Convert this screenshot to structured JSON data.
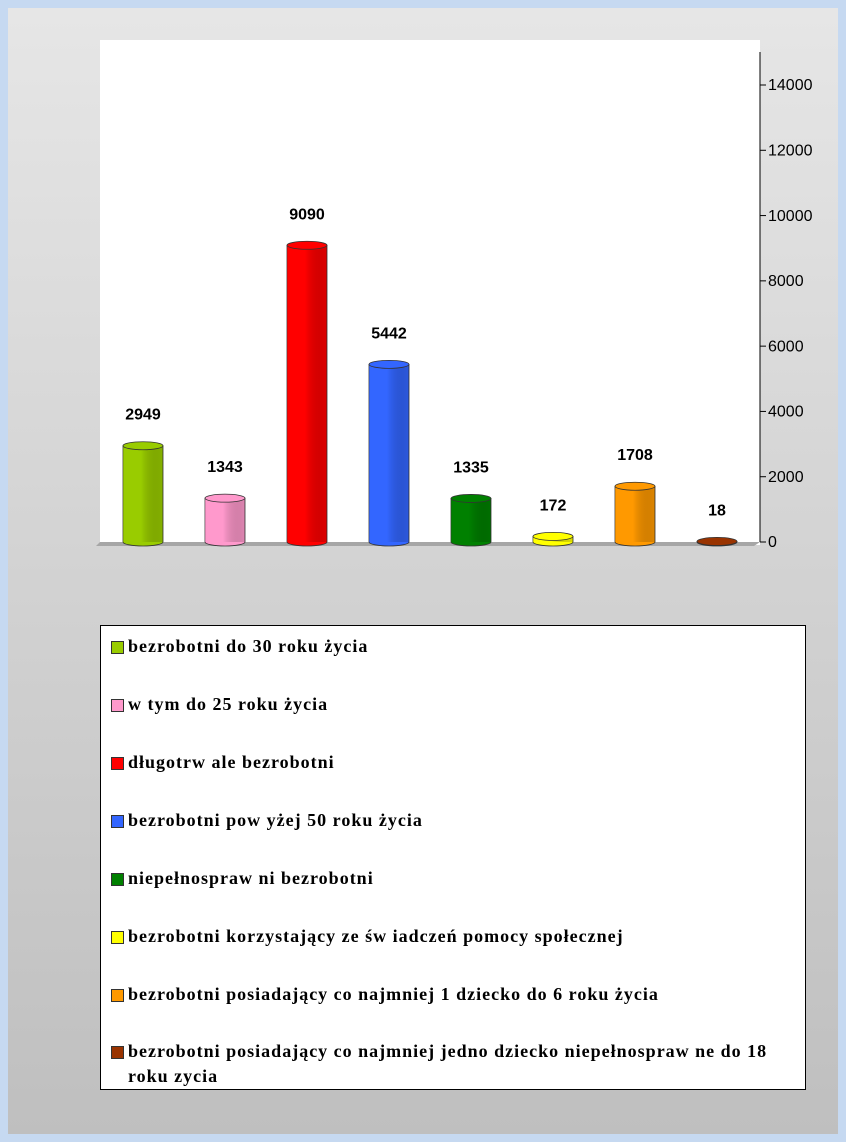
{
  "chart_data": {
    "type": "bar",
    "categories": [
      "bezrobotni do 30 roku życia",
      "w  tym do 25 roku życia",
      "długotrw ale bezrobotni",
      "bezrobotni pow yżej 50 roku życia",
      "niepełnospraw ni bezrobotni",
      "bezrobotni korzystający ze św iadczeń pomocy społecznej",
      "bezrobotni posiadający co najmniej 1 dziecko do 6 roku życia",
      "bezrobotni posiadający co najmniej jedno dziecko niepełnospraw ne do 18 roku zycia"
    ],
    "values": [
      2949,
      1343,
      9090,
      5442,
      1335,
      172,
      1708,
      18
    ],
    "colors": [
      "#99cc00",
      "#ff99cc",
      "#ff0000",
      "#3366ff",
      "#008000",
      "#ffff00",
      "#ff9900",
      "#993300"
    ],
    "ylim": [
      0,
      14000
    ],
    "yticks": [
      0,
      2000,
      4000,
      6000,
      8000,
      10000,
      12000,
      14000
    ]
  }
}
